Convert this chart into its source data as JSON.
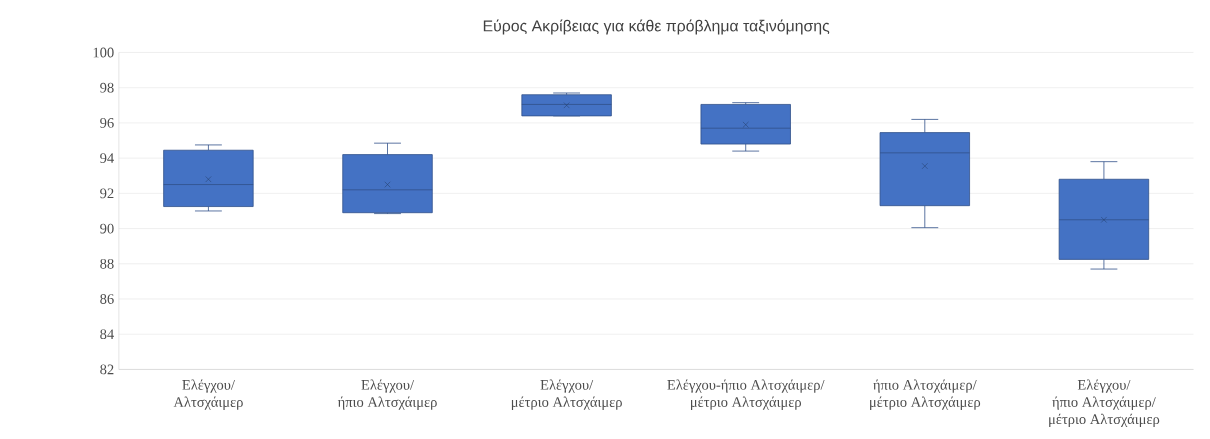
{
  "chart_data": {
    "type": "box",
    "title": "Εύρος Ακρίβειας για κάθε πρόβλημα ταξινόμησης",
    "categories": [
      "Ελέγχου/ Αλτσχάιμερ",
      "Ελέγχου/ ήπιο Αλτσχάιμερ",
      "Ελέγχου/ μέτριο Αλτσχάιμερ",
      "Ελέγχου-ήπιο Αλτσχάιμερ/ μέτριο Αλτσχάιμερ",
      "ήπιο Αλτσχάιμερ/ μέτριο Αλτσχάιμερ",
      "Ελέγχου/ ήπιο Αλτσχάιμερ/ μέτριο Αλτσχάιμερ"
    ],
    "boxes": [
      {
        "low": 91.0,
        "q1": 91.25,
        "median": 92.5,
        "q3": 94.45,
        "high": 94.75,
        "mean": 92.8
      },
      {
        "low": 90.85,
        "q1": 90.9,
        "median": 92.2,
        "q3": 94.2,
        "high": 94.85,
        "mean": 92.5
      },
      {
        "low": 96.4,
        "q1": 96.4,
        "median": 97.05,
        "q3": 97.6,
        "high": 97.7,
        "mean": 97.0
      },
      {
        "low": 94.4,
        "q1": 94.8,
        "median": 95.7,
        "q3": 97.05,
        "high": 97.15,
        "mean": 95.9
      },
      {
        "low": 90.05,
        "q1": 91.3,
        "median": 94.3,
        "q3": 95.45,
        "high": 96.2,
        "mean": 93.55
      },
      {
        "low": 87.7,
        "q1": 88.25,
        "median": 90.5,
        "q3": 92.8,
        "high": 93.8,
        "mean": 90.5
      }
    ],
    "color": "#4472c4",
    "ylim": [
      82,
      100
    ],
    "yticks": [
      82,
      84,
      86,
      88,
      90,
      92,
      94,
      96,
      98,
      100
    ],
    "grid": "y"
  }
}
